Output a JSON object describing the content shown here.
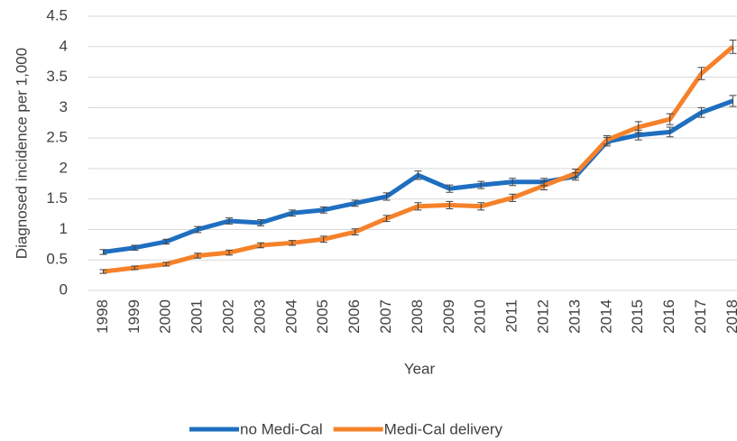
{
  "chart_data": {
    "type": "line",
    "y_label": "Diagnosed incidence per 1,000",
    "x_label": "Year",
    "categories": [
      "1998",
      "1999",
      "2000",
      "2001",
      "2002",
      "2003",
      "2004",
      "2005",
      "2006",
      "2007",
      "2008",
      "2009",
      "2010",
      "2011",
      "2012",
      "2013",
      "2014",
      "2015",
      "2016",
      "2017",
      "2018"
    ],
    "series": [
      {
        "name": "no Medi-Cal",
        "color": "#1f6fc0",
        "values": [
          0.63,
          0.7,
          0.8,
          1.0,
          1.14,
          1.11,
          1.27,
          1.32,
          1.43,
          1.54,
          1.89,
          1.67,
          1.73,
          1.78,
          1.78,
          1.87,
          2.44,
          2.55,
          2.6,
          2.92,
          3.11
        ],
        "errors": [
          0.04,
          0.04,
          0.04,
          0.05,
          0.05,
          0.05,
          0.05,
          0.05,
          0.05,
          0.06,
          0.07,
          0.06,
          0.06,
          0.06,
          0.06,
          0.06,
          0.07,
          0.08,
          0.08,
          0.08,
          0.09
        ]
      },
      {
        "name": "Medi-Cal delivery",
        "color": "#f5822a",
        "values": [
          0.31,
          0.37,
          0.43,
          0.57,
          0.62,
          0.74,
          0.78,
          0.84,
          0.96,
          1.18,
          1.38,
          1.4,
          1.38,
          1.52,
          1.72,
          1.92,
          2.47,
          2.68,
          2.81,
          3.56,
          4.0
        ],
        "errors": [
          0.03,
          0.03,
          0.03,
          0.04,
          0.04,
          0.04,
          0.04,
          0.05,
          0.05,
          0.05,
          0.06,
          0.06,
          0.06,
          0.06,
          0.07,
          0.07,
          0.07,
          0.09,
          0.09,
          0.1,
          0.11
        ]
      }
    ],
    "ylim": [
      0,
      4.5
    ],
    "yticks": [
      0,
      0.5,
      1,
      1.5,
      2,
      2.5,
      3,
      3.5,
      4,
      4.5
    ],
    "grid": true,
    "legend": "bottom"
  }
}
